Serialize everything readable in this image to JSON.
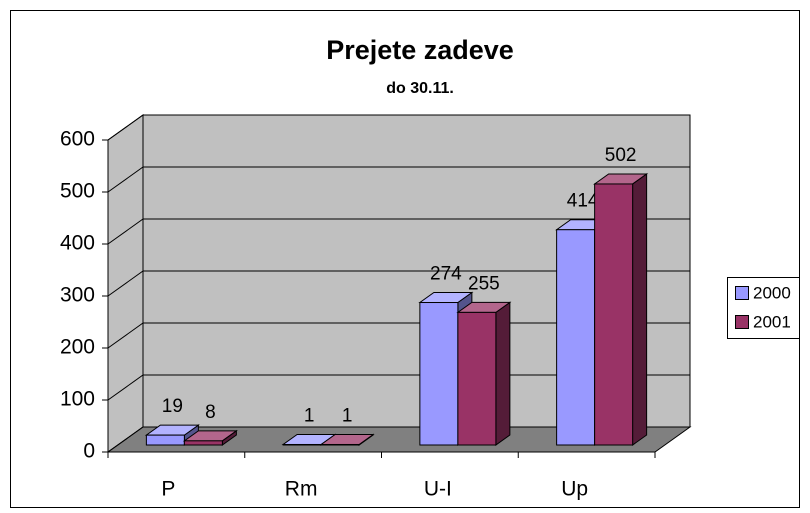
{
  "chart_data": {
    "type": "bar3d",
    "title": "Prejete zadeve",
    "subtitle": "do 30.11.",
    "categories": [
      "P",
      "Rm",
      "U-I",
      "Up"
    ],
    "series": [
      {
        "name": "2000",
        "color": "#9999ff",
        "values": [
          19,
          1,
          274,
          414
        ]
      },
      {
        "name": "2001",
        "color": "#993366",
        "values": [
          8,
          1,
          255,
          502
        ]
      }
    ],
    "ylim": [
      0,
      600
    ],
    "yticks": [
      0,
      100,
      200,
      300,
      400,
      500,
      600
    ],
    "grid": true,
    "legend": "right"
  }
}
